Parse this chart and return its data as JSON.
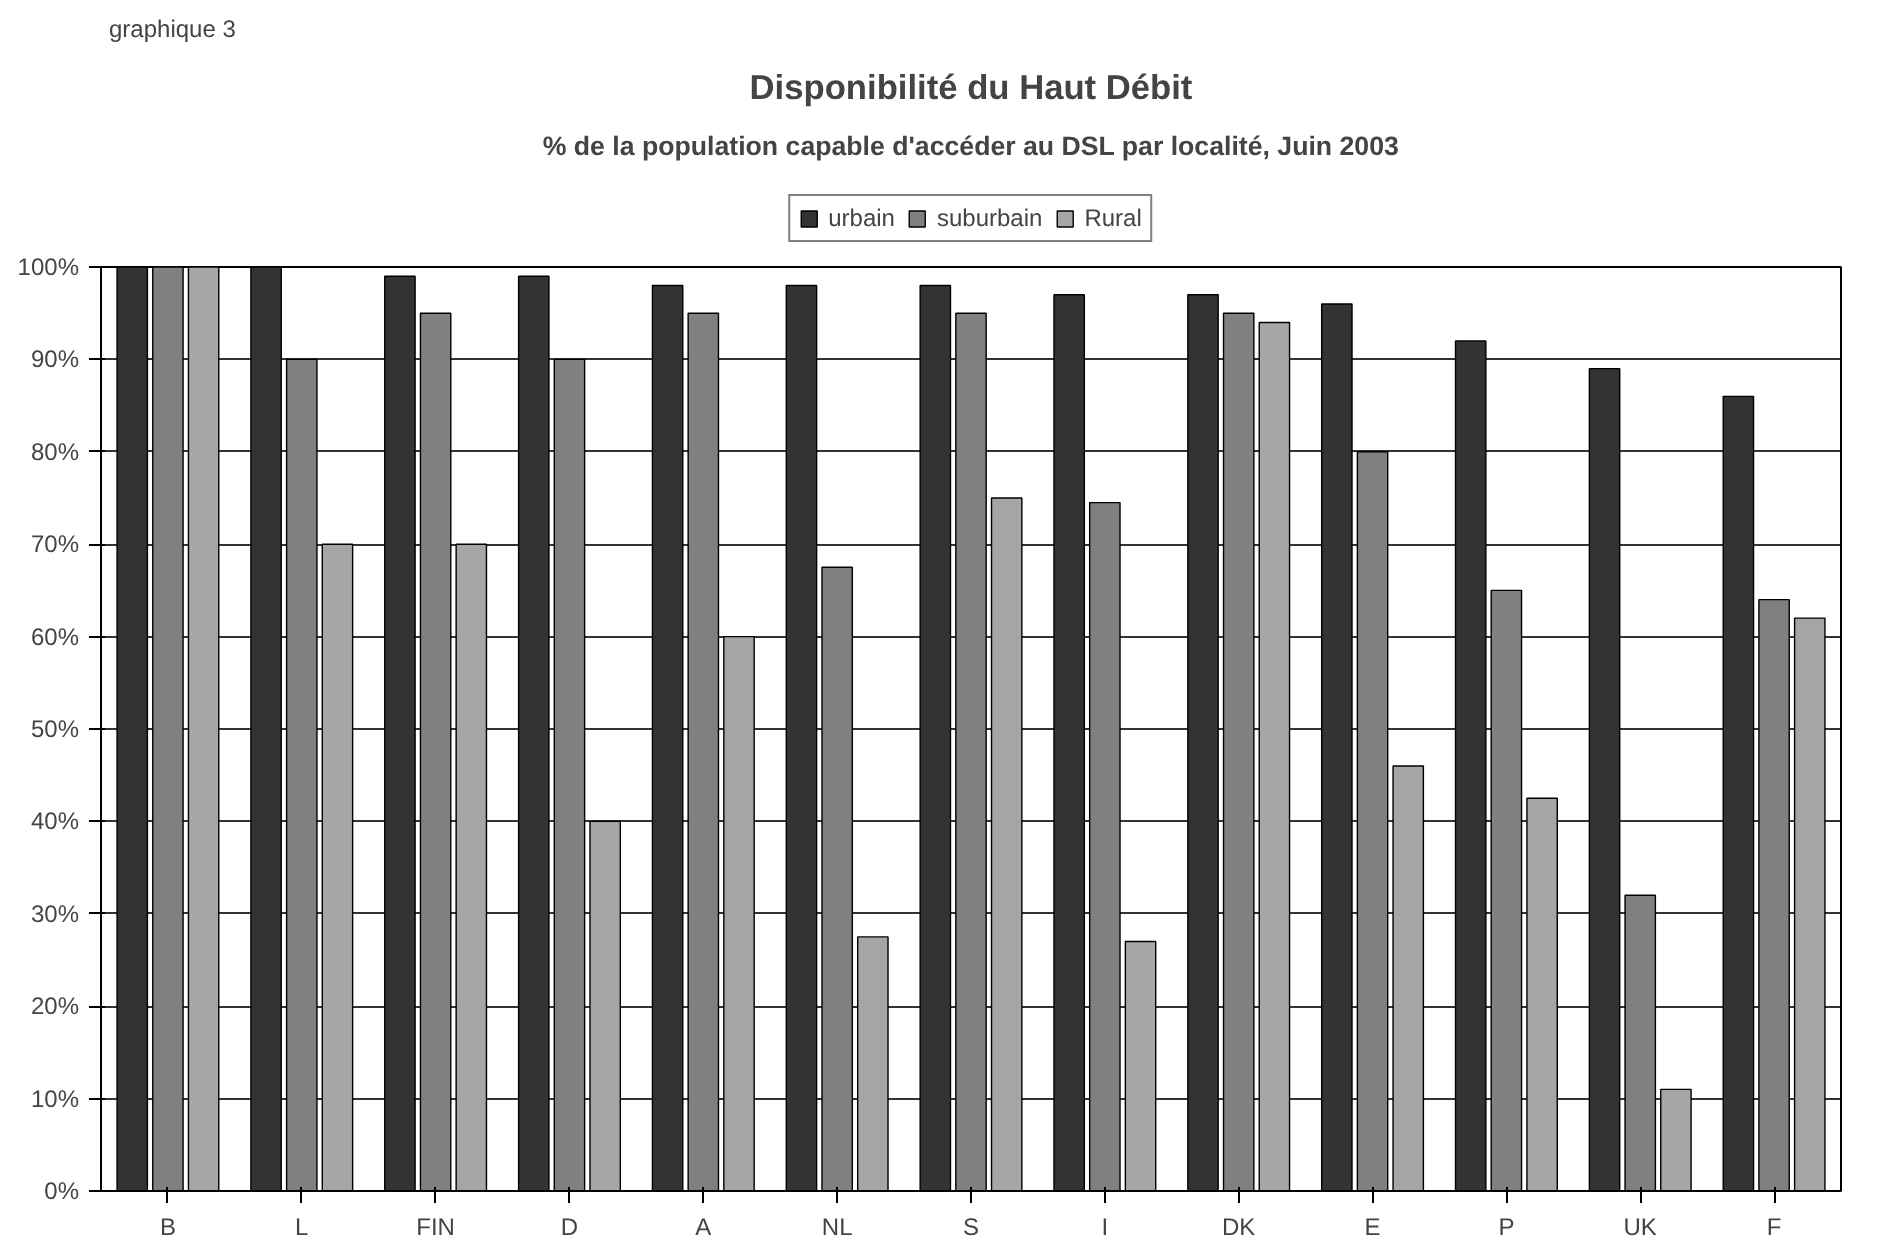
{
  "chart_data": {
    "type": "bar",
    "title": "Disponibilité du Haut Débit",
    "subtitle": "% de la population capable d'accéder au DSL par localité, Juin 2003",
    "annotations": [
      "graphique 3"
    ],
    "categories": [
      "B",
      "L",
      "FIN",
      "D",
      "A",
      "NL",
      "S",
      "I",
      "DK",
      "E",
      "P",
      "UK",
      "F"
    ],
    "series": [
      {
        "name": "urbain",
        "color": "#333333",
        "values": [
          100,
          100,
          99,
          99,
          98,
          98,
          98,
          97,
          97,
          96,
          92,
          89,
          86
        ]
      },
      {
        "name": "suburbain",
        "color": "#808080",
        "values": [
          100,
          90,
          95,
          90,
          95,
          67.5,
          95,
          74.5,
          95,
          80,
          65,
          32,
          64
        ]
      },
      {
        "name": "Rural",
        "color": "#a6a6a6",
        "values": [
          100,
          70,
          70,
          40,
          60,
          27.5,
          75,
          27,
          94,
          46,
          42.5,
          11,
          62
        ]
      }
    ],
    "ylim": [
      0,
      100
    ],
    "yticks": [
      {
        "value": 0,
        "label": "0%"
      },
      {
        "value": 10,
        "label": "10%"
      },
      {
        "value": 20,
        "label": "20%"
      },
      {
        "value": 30,
        "label": "30%"
      },
      {
        "value": 40,
        "label": "40%"
      },
      {
        "value": 50,
        "label": "50%"
      },
      {
        "value": 60,
        "label": "60%"
      },
      {
        "value": 70,
        "label": "70%"
      },
      {
        "value": 80,
        "label": "80%"
      },
      {
        "value": 90,
        "label": "90%"
      },
      {
        "value": 100,
        "label": "100%"
      }
    ],
    "grid": "y",
    "legend": "top"
  }
}
